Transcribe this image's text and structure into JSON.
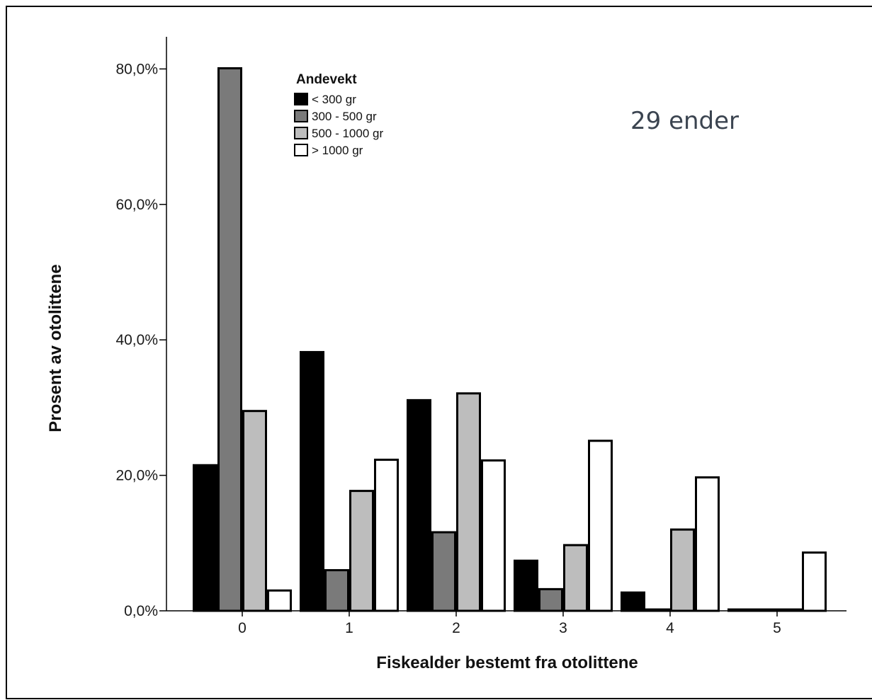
{
  "chart_data": {
    "type": "bar",
    "categories": [
      "0",
      "1",
      "2",
      "3",
      "4",
      "5"
    ],
    "xlabel": "Fiskealder bestemt fra otolittene",
    "ylabel": "Prosent av otolittene",
    "ylim": [
      0,
      85
    ],
    "yticks": [
      0,
      20,
      40,
      60,
      80
    ],
    "ytick_labels": [
      "0,0%",
      "20,0%",
      "40,0%",
      "60,0%",
      "80,0%"
    ],
    "legend_title": "Andevekt",
    "legend_position": "top-left",
    "annotation": "29 ender",
    "grid": false,
    "series": [
      {
        "name": "< 300 gr",
        "color": "#000000",
        "values": [
          21.5,
          38.2,
          31.1,
          7.4,
          2.7,
          0.2
        ]
      },
      {
        "name": "300 - 500 gr",
        "color": "#7a7a7a",
        "values": [
          80.1,
          6.0,
          11.6,
          3.2,
          0.2,
          0.2
        ]
      },
      {
        "name": "500 - 1000 gr",
        "color": "#bdbdbd",
        "values": [
          29.5,
          17.7,
          32.1,
          9.7,
          12.0,
          0.2
        ]
      },
      {
        "name": "> 1000 gr",
        "color": "#ffffff",
        "values": [
          3.0,
          22.3,
          22.2,
          25.1,
          19.7,
          8.6
        ]
      }
    ]
  }
}
